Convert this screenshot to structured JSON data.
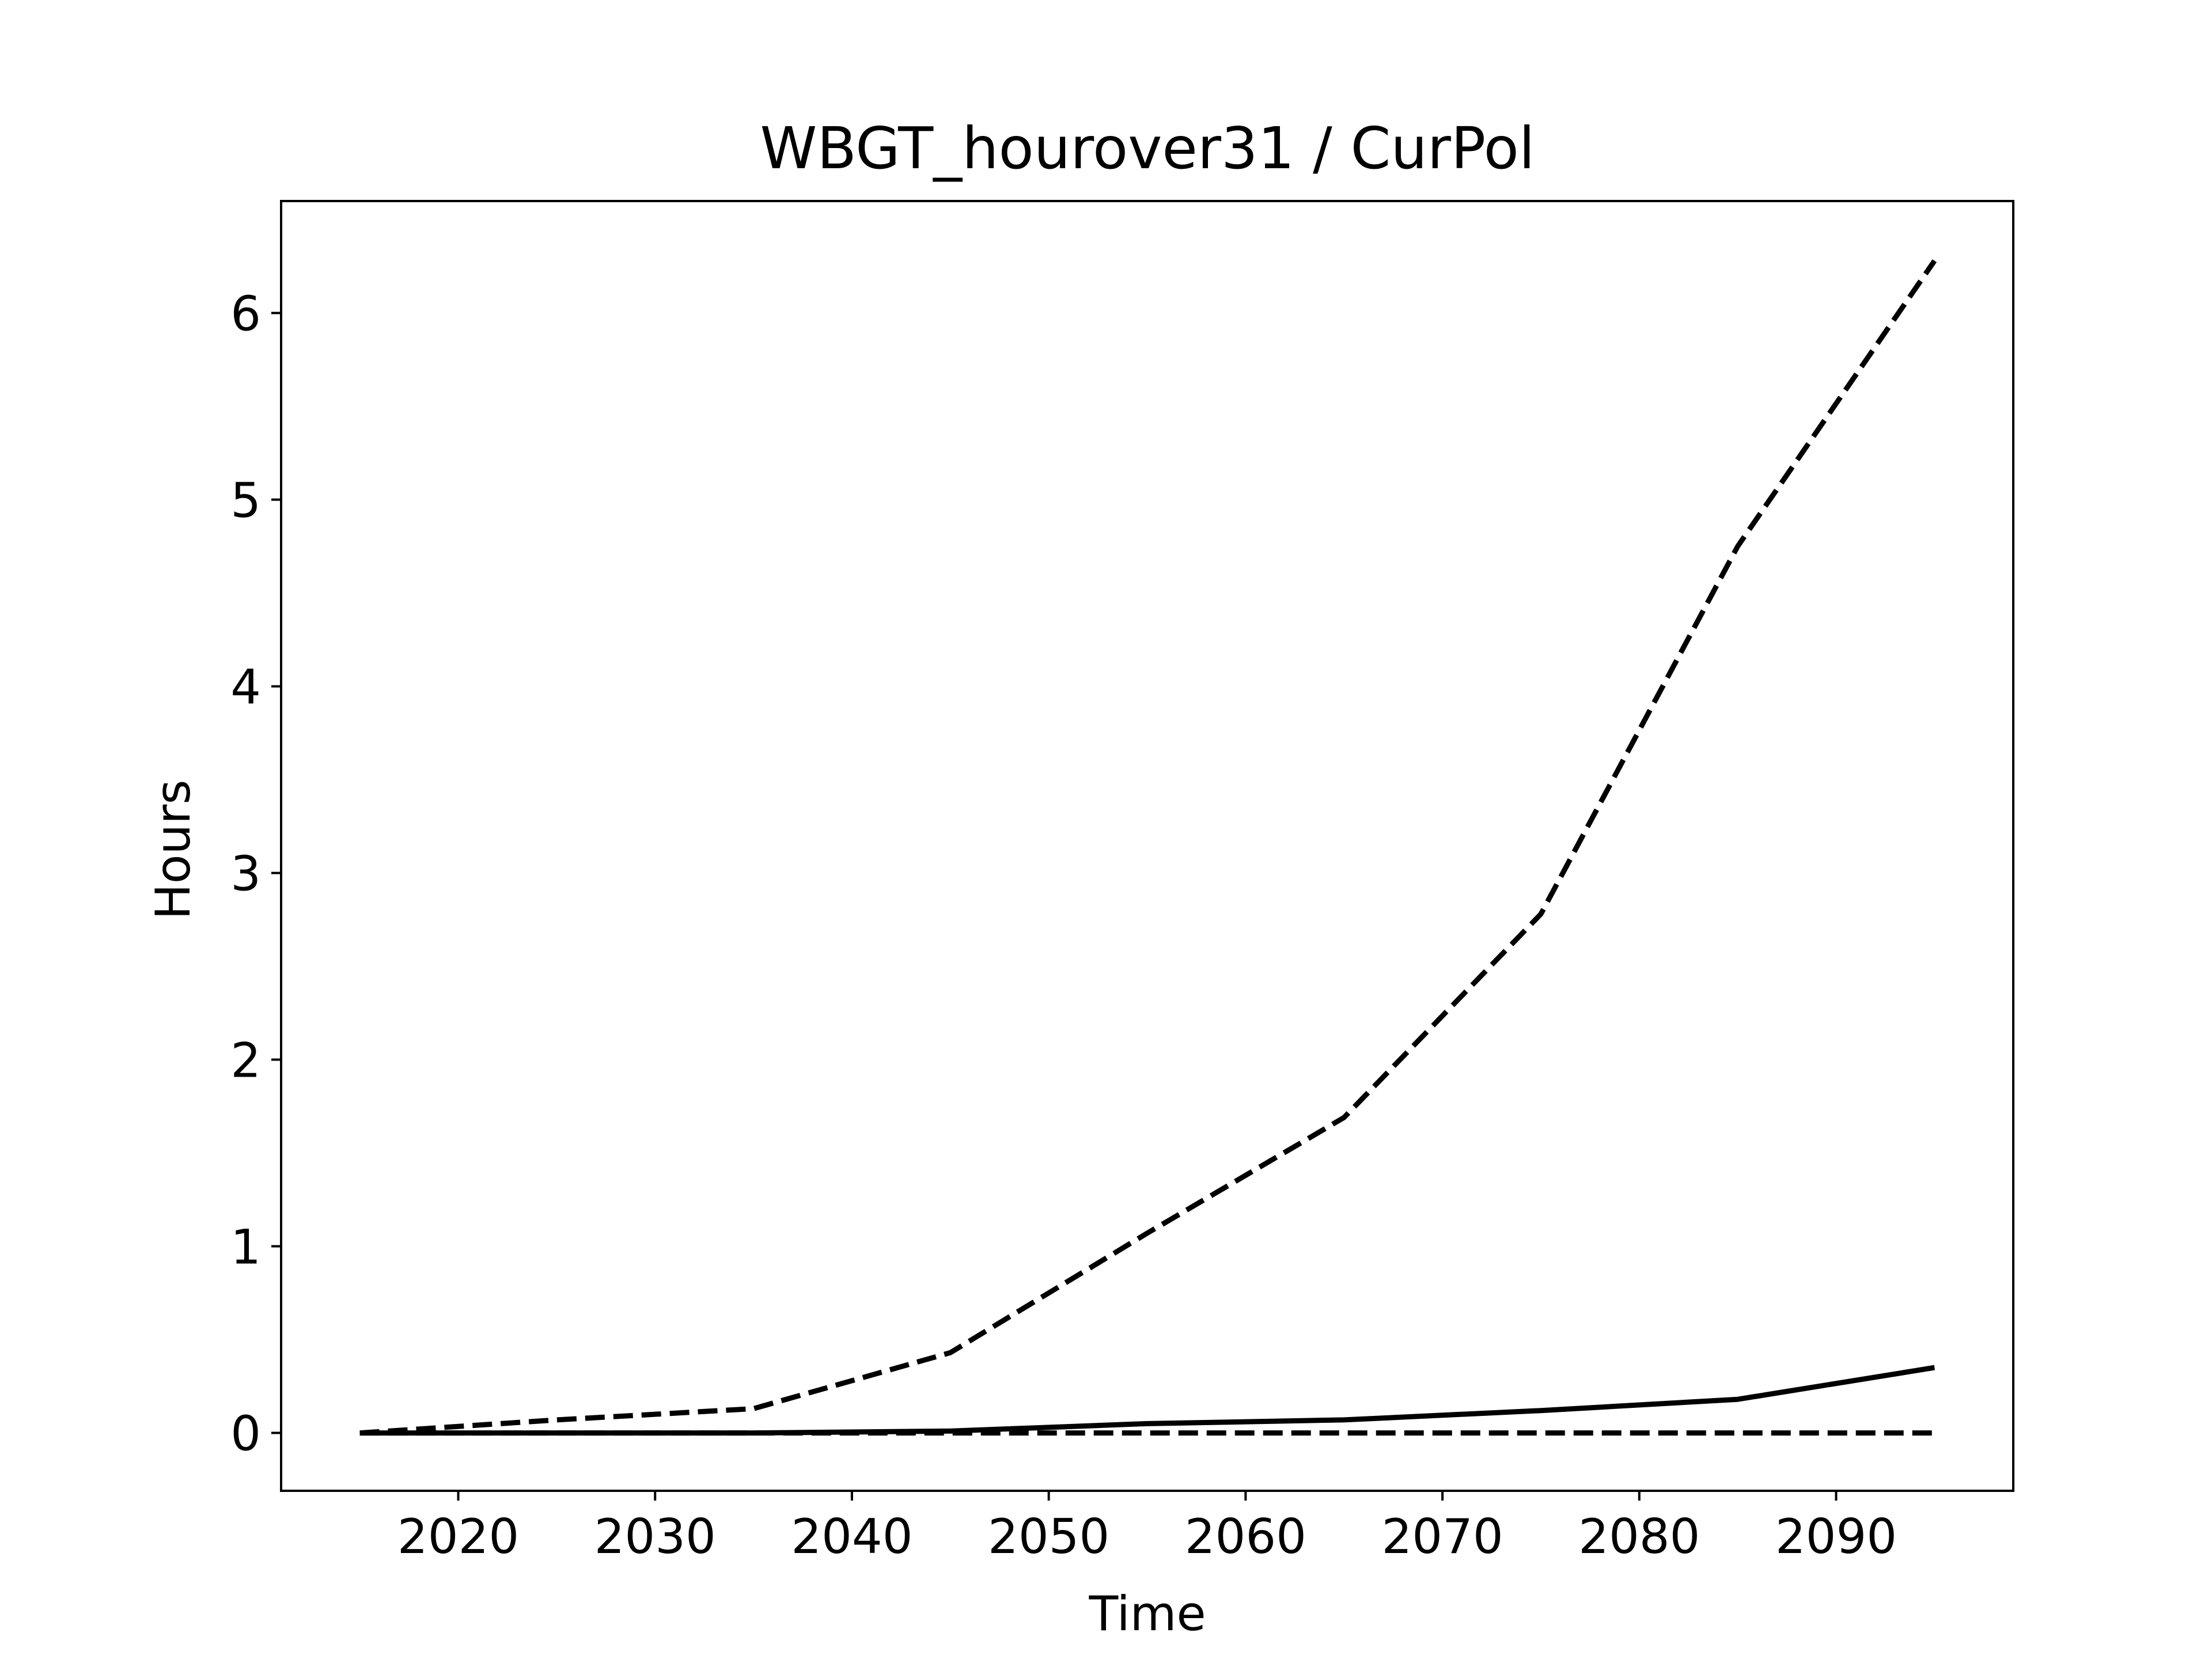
{
  "chart_data": {
    "type": "line",
    "title": "WBGT_hourover31 / CurPol",
    "xlabel": "Time",
    "ylabel": "Hours",
    "xlim": [
      2011,
      2099
    ],
    "ylim": [
      -0.31,
      6.6
    ],
    "grid": false,
    "x": [
      2015,
      2025,
      2035,
      2045,
      2055,
      2065,
      2075,
      2085,
      2095
    ],
    "x_ticks": [
      "2020",
      "2030",
      "2040",
      "2050",
      "2060",
      "2070",
      "2080",
      "2090"
    ],
    "y_ticks": [
      "0",
      "1",
      "2",
      "3",
      "4",
      "5",
      "6"
    ],
    "series": [
      {
        "values": [
          0,
          0.07,
          0.13,
          0.43,
          1.07,
          1.69,
          2.78,
          4.75,
          6.28
        ],
        "style": "dashed",
        "color": "#000000"
      },
      {
        "values": [
          0,
          0,
          0,
          0.01,
          0.05,
          0.07,
          0.12,
          0.18,
          0.35
        ],
        "style": "solid",
        "color": "#000000"
      },
      {
        "values": [
          0,
          0,
          0,
          0,
          0,
          0,
          0,
          0,
          0
        ],
        "style": "dashed",
        "color": "#000000"
      }
    ]
  }
}
